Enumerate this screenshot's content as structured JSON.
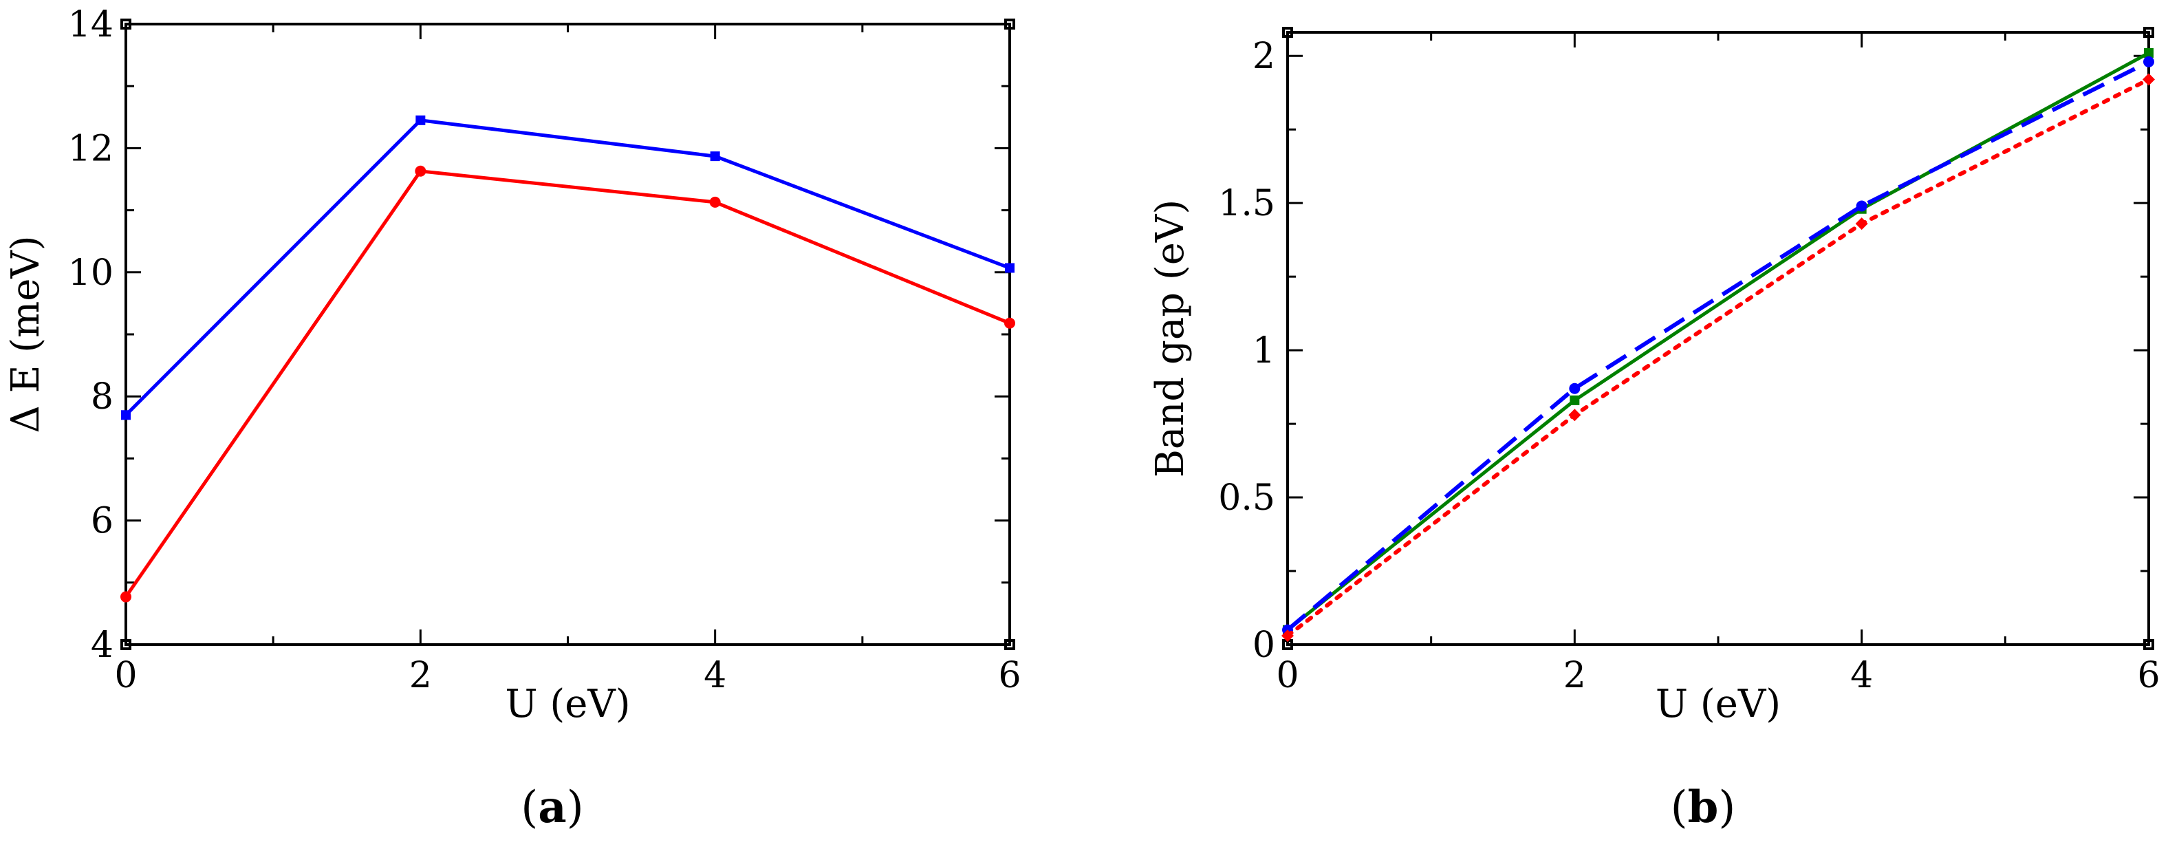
{
  "figure": {
    "panel_a": {
      "open": "(",
      "letter": "a",
      "close": ")"
    },
    "panel_b": {
      "open": "(",
      "letter": "b",
      "close": ")"
    }
  },
  "chart_data": [
    {
      "type": "line",
      "panel": "a",
      "xlabel": "U (eV)",
      "ylabel": "Δ E (meV)",
      "xlim": [
        0,
        6
      ],
      "ylim": [
        4,
        14
      ],
      "xticks": [
        0,
        2,
        4,
        6
      ],
      "yticks": [
        4,
        6,
        8,
        10,
        12,
        14
      ],
      "x_minor_step": 1,
      "y_minor_step": 1,
      "grid": false,
      "x": [
        0,
        2,
        4,
        6
      ],
      "series": [
        {
          "values": [
            7.7,
            12.45,
            11.87,
            10.07
          ],
          "color": "#0000ff",
          "marker": "square",
          "dash": "solid"
        },
        {
          "values": [
            4.77,
            11.63,
            11.13,
            9.18
          ],
          "color": "#ff0000",
          "marker": "circle",
          "dash": "solid"
        }
      ]
    },
    {
      "type": "line",
      "panel": "b",
      "xlabel": "U (eV)",
      "ylabel": "Band gap (eV)",
      "xlim": [
        0,
        6
      ],
      "ylim": [
        0,
        2.08
      ],
      "xticks": [
        0,
        2,
        4,
        6
      ],
      "yticks": [
        0,
        0.5,
        1,
        1.5,
        2
      ],
      "ytick_labels": [
        "0",
        "0.5",
        "1",
        "1.5",
        "2"
      ],
      "x_minor_step": 1,
      "y_minor_step": 0.25,
      "grid": false,
      "x": [
        0,
        2,
        4,
        6
      ],
      "series": [
        {
          "values": [
            0.05,
            0.83,
            1.48,
            2.01
          ],
          "color": "#008000",
          "marker": "square",
          "dash": "solid"
        },
        {
          "values": [
            0.05,
            0.87,
            1.49,
            1.98
          ],
          "color": "#0000ff",
          "marker": "circle",
          "dash": "dashed"
        },
        {
          "values": [
            0.03,
            0.78,
            1.43,
            1.92
          ],
          "color": "#ff0000",
          "marker": "diamond",
          "dash": "dotted"
        }
      ]
    }
  ]
}
